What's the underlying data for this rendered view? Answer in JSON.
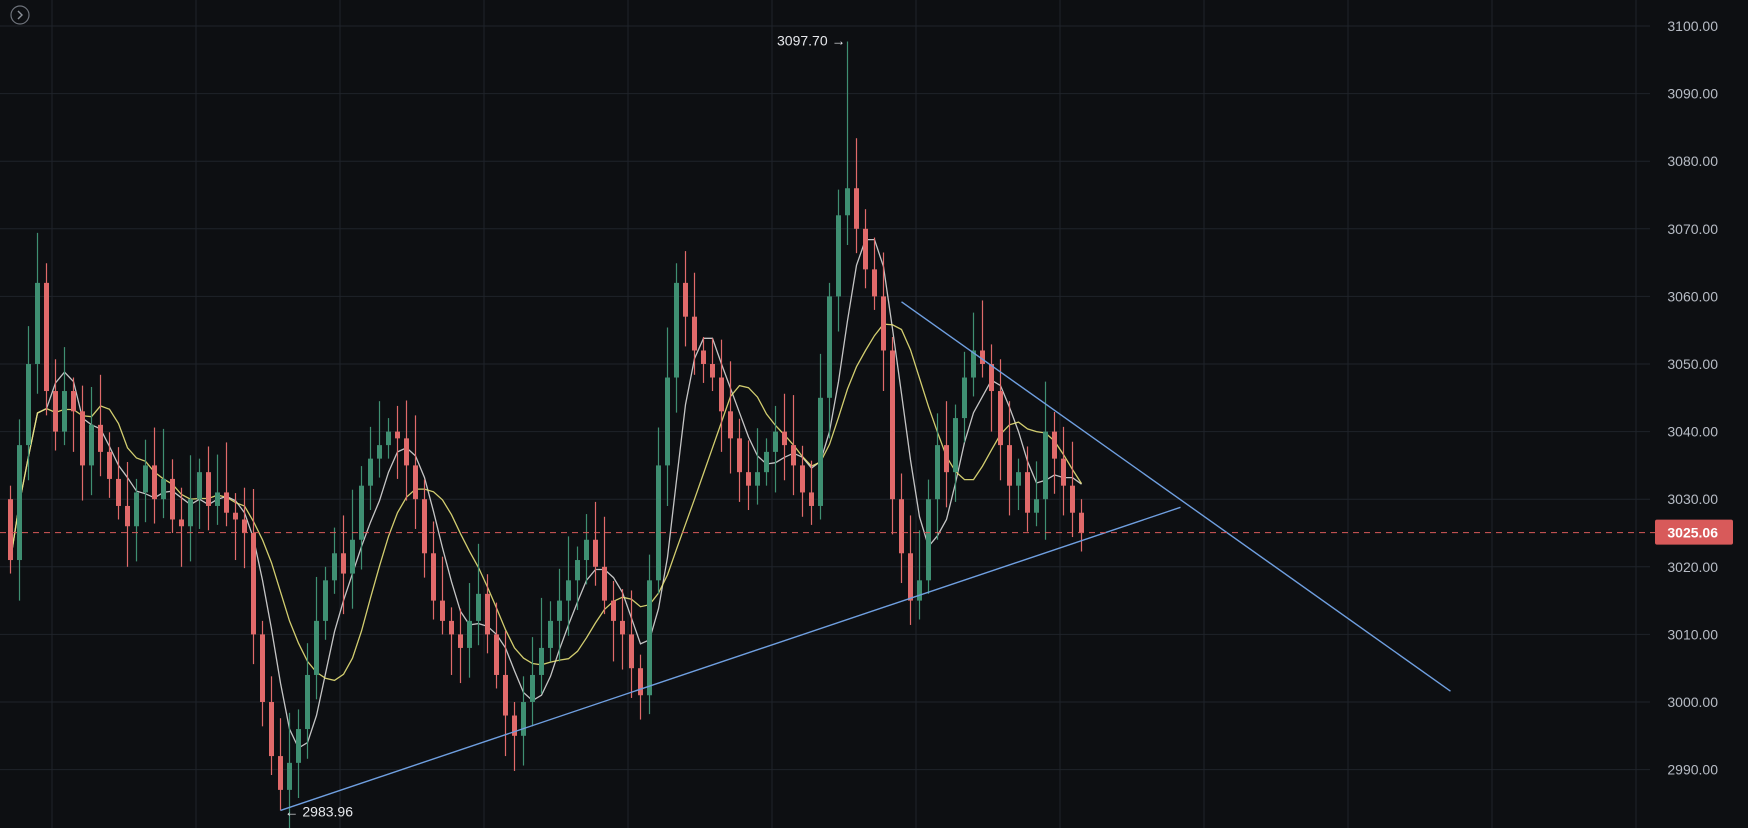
{
  "chart_data": {
    "type": "candlestick",
    "title": "",
    "xlabel": "",
    "ylabel": "",
    "ylim": [
      2983,
      3103
    ],
    "y_ticks": [
      "3100.00",
      "3090.00",
      "3080.00",
      "3070.00",
      "3060.00",
      "3050.00",
      "3040.00",
      "3030.00",
      "3020.00",
      "3010.00",
      "3000.00",
      "2990.00"
    ],
    "y_tick_values": [
      3100,
      3090,
      3080,
      3070,
      3060,
      3050,
      3040,
      3030,
      3020,
      3010,
      3000,
      2990
    ],
    "grid": true,
    "last_price": 3025.06,
    "last_price_label": "3025.06",
    "high_annotation": {
      "label": "3097.70 →",
      "value": 3097.7,
      "bar": 93
    },
    "low_annotation": {
      "label": "← 2983.96",
      "value": 2983.96,
      "bar": 30
    },
    "bar_count": 120,
    "closes": [
      3021,
      3038,
      3050,
      3062,
      3046,
      3040,
      3046,
      3043,
      3035,
      3041,
      3037,
      3033,
      3029,
      3026,
      3031,
      3035,
      3030,
      3033,
      3027,
      3026,
      3030,
      3034,
      3029,
      3031,
      3028,
      3027,
      3025,
      3010,
      3000,
      2992,
      2987,
      2991,
      2996,
      3004,
      3012,
      3018,
      3022,
      3019,
      3024,
      3032,
      3036,
      3038,
      3040,
      3039,
      3035,
      3030,
      3022,
      3015,
      3012,
      3010,
      3008,
      3012,
      3016,
      3010,
      3004,
      2998,
      2995,
      3000,
      3004,
      3008,
      3012,
      3015,
      3018,
      3021,
      3024,
      3020,
      3015,
      3012,
      3010,
      3005,
      3001,
      3018,
      3035,
      3048,
      3062,
      3057,
      3052,
      3050,
      3048,
      3043,
      3039,
      3034,
      3032,
      3034,
      3037,
      3040,
      3038,
      3035,
      3031,
      3029,
      3045,
      3060,
      3072,
      3076,
      3070,
      3064,
      3060,
      3052,
      3030,
      3022,
      3015,
      3018,
      3030,
      3038,
      3034,
      3042,
      3048,
      3052,
      3050,
      3046,
      3038,
      3032,
      3034,
      3028,
      3030,
      3040,
      3036,
      3032,
      3028,
      3025.06
    ],
    "moving_averages": [
      {
        "color": "#d9d9d9",
        "period": 5
      },
      {
        "color": "#e8e27a",
        "period": 10
      }
    ],
    "trendlines": [
      {
        "from": {
          "bar": 30,
          "value": 2983.96
        },
        "to": {
          "bar": 130,
          "value": 3028.8
        },
        "color": "#6f9fe0"
      },
      {
        "from": {
          "bar": 99,
          "value": 3059.2
        },
        "to": {
          "bar": 160,
          "value": 3001.6
        },
        "color": "#6f9fe0"
      }
    ]
  },
  "colors": {
    "background": "#0d0f12",
    "grid": "#1f232a",
    "up": "#3f8f72",
    "down": "#e06a6a",
    "price_tag": "#d85a5a",
    "price_line": "#d85a5a"
  }
}
